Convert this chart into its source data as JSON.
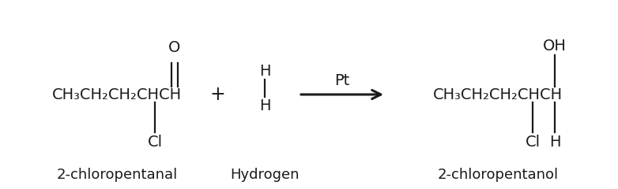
{
  "bg_color": "#ffffff",
  "text_color": "#1a1a1a",
  "font_size_main": 14,
  "font_size_label": 13,
  "reactant1_chain": "CH₃CH₂CH₂CHCH",
  "reactant1_o": "O",
  "reactant1_cl": "Cl",
  "reactant1_label": "2-chloropentanal",
  "plus": "+",
  "h2_top": "H",
  "h2_bot": "H",
  "h2_label": "Hydrogen",
  "catalyst": "Pt",
  "product_chain": "CH₃CH₂CH₂CHCH",
  "product_oh": "OH",
  "product_cl": "Cl",
  "product_h": "H",
  "product_label": "2-chloropentanol"
}
